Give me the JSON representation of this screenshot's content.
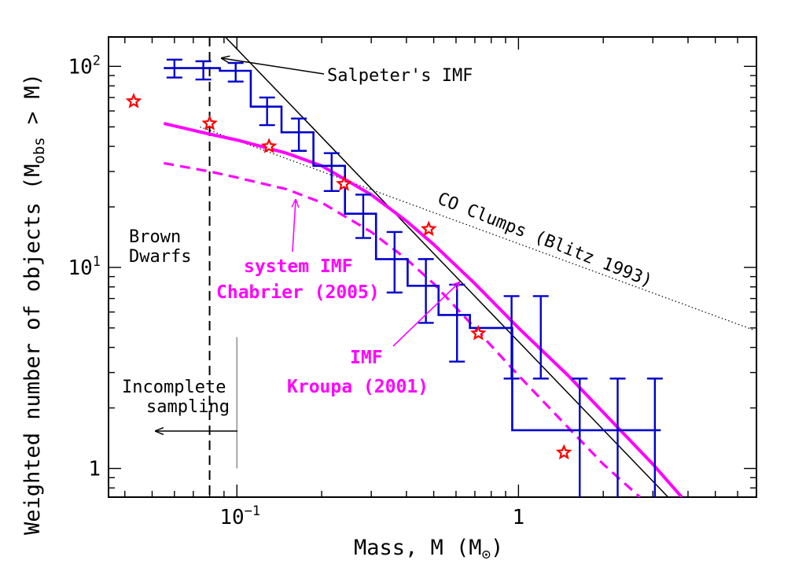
{
  "chart_data": {
    "type": "line",
    "xlabel": "Mass, M (M",
    "xlabel_sub": "⊙",
    "xlabel_close": ")",
    "ylabel_pre": "Weighted number of objects (M",
    "ylabel_sub": "obs",
    "ylabel_post": " > M)",
    "x_scale": "log",
    "y_scale": "log",
    "xlim": [
      0.035,
      7.0
    ],
    "ylim": [
      0.72,
      140
    ],
    "x_ticks": [
      {
        "value": 0.1,
        "base": "10",
        "exp": "−1"
      },
      {
        "value": 1,
        "label": "1"
      }
    ],
    "y_ticks": [
      {
        "value": 1,
        "label": "1"
      },
      {
        "value": 10,
        "base": "10",
        "exp": "1"
      },
      {
        "value": 100,
        "base": "10",
        "exp": "2"
      }
    ],
    "colors": {
      "histogram": "#0000cc",
      "imf": "#ff00ff",
      "stars": "#ff0000",
      "axes": "#000000"
    },
    "histogram": {
      "edges": [
        0.055,
        0.065,
        0.087,
        0.112,
        0.144,
        0.187,
        0.242,
        0.312,
        0.404,
        0.52,
        0.672,
        0.95,
        1.5,
        3.2
      ],
      "values": [
        98,
        98,
        95,
        63,
        47,
        32,
        18.5,
        11,
        8.1,
        5.8,
        5.0,
        1.55,
        1.55
      ],
      "errors": [
        {
          "x": 0.06,
          "y": 98,
          "low": 88,
          "high": 108
        },
        {
          "x": 0.076,
          "y": 96,
          "low": 86,
          "high": 106
        },
        {
          "x": 0.099,
          "y": 94,
          "low": 84,
          "high": 104
        },
        {
          "x": 0.128,
          "y": 60,
          "low": 51,
          "high": 70
        },
        {
          "x": 0.166,
          "y": 46,
          "low": 38,
          "high": 55
        },
        {
          "x": 0.217,
          "y": 31,
          "low": 24,
          "high": 37
        },
        {
          "x": 0.281,
          "y": 18.5,
          "low": 14,
          "high": 23
        },
        {
          "x": 0.363,
          "y": 11,
          "low": 7.5,
          "high": 15
        },
        {
          "x": 0.469,
          "y": 8,
          "low": 5.3,
          "high": 11
        },
        {
          "x": 0.605,
          "y": 5.8,
          "low": 3.4,
          "high": 8.2
        },
        {
          "x": 0.945,
          "y": 5,
          "low": 2.8,
          "high": 7.2
        },
        {
          "x": 1.2,
          "y": 5,
          "low": 2.8,
          "high": 7.2
        },
        {
          "x": 1.65,
          "y": 1.55,
          "low": 0.72,
          "high": 2.8
        },
        {
          "x": 2.25,
          "y": 1.55,
          "low": 0.72,
          "high": 2.8
        },
        {
          "x": 3.05,
          "y": 1.55,
          "low": 0.72,
          "high": 2.8
        }
      ]
    },
    "stars": [
      {
        "x": 0.043,
        "y": 67
      },
      {
        "x": 0.08,
        "y": 52
      },
      {
        "x": 0.13,
        "y": 40
      },
      {
        "x": 0.24,
        "y": 26
      },
      {
        "x": 0.48,
        "y": 15.5
      },
      {
        "x": 0.72,
        "y": 4.7
      },
      {
        "x": 1.45,
        "y": 1.2
      }
    ],
    "series": [
      {
        "key": "salpeter",
        "color": "#000000",
        "style": "solid",
        "x": [
          0.083,
          3.4
        ],
        "y": [
          160,
          0.72
        ]
      },
      {
        "key": "co_clumps",
        "color": "#000000",
        "style": "dotted",
        "x": [
          0.074,
          6.8
        ],
        "y": [
          50,
          4.9
        ]
      },
      {
        "key": "kroupa",
        "color": "#ff00ff",
        "style": "solid-thick",
        "x": [
          0.055,
          0.08,
          0.1,
          0.15,
          0.2,
          0.3,
          0.4,
          0.5,
          0.7,
          1.0,
          1.5,
          2.0,
          3.0,
          3.8
        ],
        "y": [
          52,
          46,
          43,
          37,
          32,
          23,
          17,
          13,
          8.3,
          5.0,
          2.9,
          1.9,
          1.05,
          0.72
        ]
      },
      {
        "key": "chabrier",
        "color": "#ff00ff",
        "style": "dashed",
        "x": [
          0.055,
          0.08,
          0.1,
          0.15,
          0.2,
          0.3,
          0.4,
          0.5,
          0.7,
          1.0,
          1.5,
          2.0,
          2.7
        ],
        "y": [
          33,
          30,
          28,
          24.5,
          21,
          15,
          11,
          8.3,
          5.0,
          2.9,
          1.6,
          1.05,
          0.72
        ]
      }
    ],
    "vline": {
      "x": 0.08
    },
    "incomplete_line": {
      "x": 0.1,
      "y_range": [
        1.0,
        4.5
      ]
    },
    "annotations": {
      "salpeter": "Salpeter's IMF",
      "co_clumps": "CO Clumps (Blitz 1993)",
      "brown_1": "Brown",
      "brown_2": "Dwarfs",
      "system_1": "system IMF",
      "system_2": "Chabrier (2005)",
      "kroupa_1": "IMF",
      "kroupa_2": "Kroupa (2001)",
      "incomplete_1": "Incomplete",
      "incomplete_2": "sampling"
    }
  }
}
